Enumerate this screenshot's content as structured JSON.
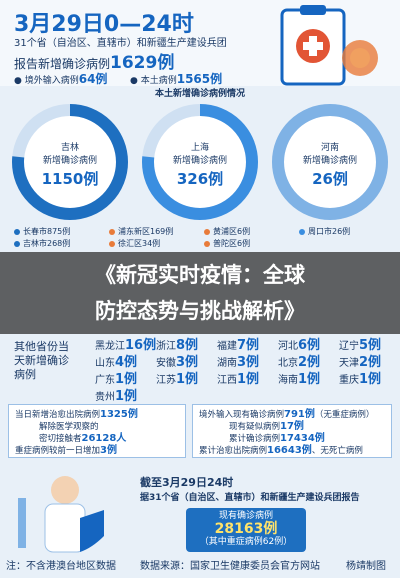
{
  "header": {
    "date": "3月29日0—24时",
    "scope": "31个省（自治区、直辖市）和新疆生产建设兵团",
    "report": {
      "label": "报告新增确诊病例",
      "number": "1629例"
    },
    "imported": {
      "label": "境外输入病例",
      "number": "64例"
    },
    "local": {
      "label": "本土病例",
      "number": "1565例"
    }
  },
  "section_title": "本土新增确诊病例情况",
  "donuts": [
    {
      "name": "吉林",
      "label": "新增确诊病例",
      "number": "1150例"
    },
    {
      "name": "上海",
      "label": "新增确诊病例",
      "number": "326例"
    },
    {
      "name": "河南",
      "label": "新增确诊病例",
      "number": "26例"
    }
  ],
  "legend": [
    [
      "长春市875例",
      "吉林市268例"
    ],
    [
      "浦东新区169例",
      "徐汇区34例"
    ],
    [
      "黄浦区6例",
      "普陀区6例"
    ],
    [
      "周口市26例"
    ]
  ],
  "overlay_title": [
    "《新冠实时疫情：全球",
    "防控态势与挑战解析》"
  ],
  "provinces": {
    "label": "其他省份当天新增确诊病例",
    "items": [
      [
        "黑龙江",
        "16例"
      ],
      [
        "浙江",
        "8例"
      ],
      [
        "福建",
        "7例"
      ],
      [
        "河北",
        "6例"
      ],
      [
        "辽宁",
        "5例"
      ],
      [
        "山东",
        "4例"
      ],
      [
        "安徽",
        "3例"
      ],
      [
        "湖南",
        "3例"
      ],
      [
        "北京",
        "2例"
      ],
      [
        "天津",
        "2例"
      ],
      [
        "广东",
        "1例"
      ],
      [
        "江苏",
        "1例"
      ],
      [
        "江西",
        "1例"
      ],
      [
        "海南",
        "1例"
      ],
      [
        "重庆",
        "1例"
      ],
      [
        "贵州",
        "1例"
      ]
    ]
  },
  "left_box": [
    [
      "当日新增治愈出院病例",
      "1325例"
    ],
    [
      "解除医学观察的",
      ""
    ],
    [
      "密切接触者",
      "26128人"
    ],
    [
      "重症病例较前一日增加",
      "3例"
    ]
  ],
  "right_box": [
    [
      "境外输入现有确诊病例",
      "791例",
      "（无重症病例）"
    ],
    [
      "现有疑似病例",
      "17例",
      ""
    ],
    [
      "累计确诊病例",
      "17434例",
      ""
    ],
    [
      "累计治愈出院病例",
      "16643例",
      "、无死亡病例"
    ]
  ],
  "summary": {
    "date": "截至3月29日24时",
    "scope": "据31个省（自治区、直辖市）和新疆生产建设兵团报告",
    "label": "现有确诊病例",
    "number": "28163例",
    "note": "（其中重症病例62例）"
  },
  "footer": {
    "note": "注：不含港澳台地区数据",
    "source": "数据来源：国家卫生健康委员会官方网站",
    "author": "杨靖制图"
  }
}
